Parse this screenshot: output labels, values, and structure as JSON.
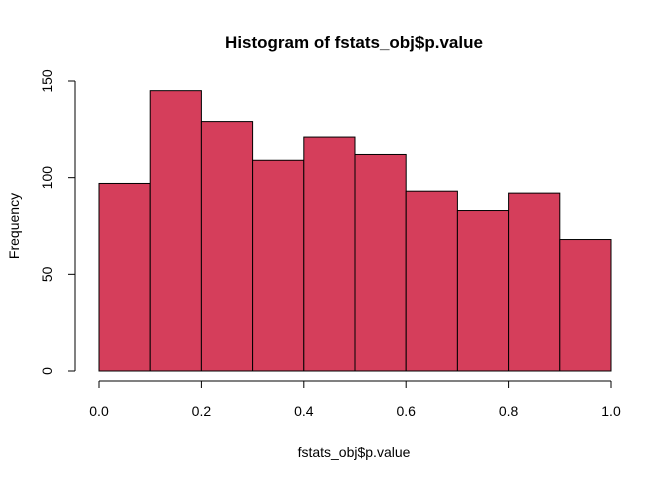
{
  "chart_data": {
    "type": "bar",
    "title": "Histogram of fstats_obj$p.value",
    "xlabel": "fstats_obj$p.value",
    "ylabel": "Frequency",
    "bin_edges": [
      0.0,
      0.1,
      0.2,
      0.3,
      0.4,
      0.5,
      0.6,
      0.7,
      0.8,
      0.9,
      1.0
    ],
    "values": [
      97,
      145,
      129,
      109,
      121,
      112,
      93,
      83,
      92,
      68
    ],
    "xlim": [
      0.0,
      1.0
    ],
    "ylim": [
      0,
      150
    ],
    "x_ticks": [
      0.0,
      0.2,
      0.4,
      0.6,
      0.8,
      1.0
    ],
    "x_tick_labels": [
      "0.0",
      "0.2",
      "0.4",
      "0.6",
      "0.8",
      "1.0"
    ],
    "y_ticks": [
      0,
      50,
      100,
      150
    ],
    "y_tick_labels": [
      "0",
      "50",
      "100",
      "150"
    ],
    "grid": false,
    "legend": "none",
    "bar_color": "#D53E5B",
    "bar_border_color": "#000000"
  }
}
